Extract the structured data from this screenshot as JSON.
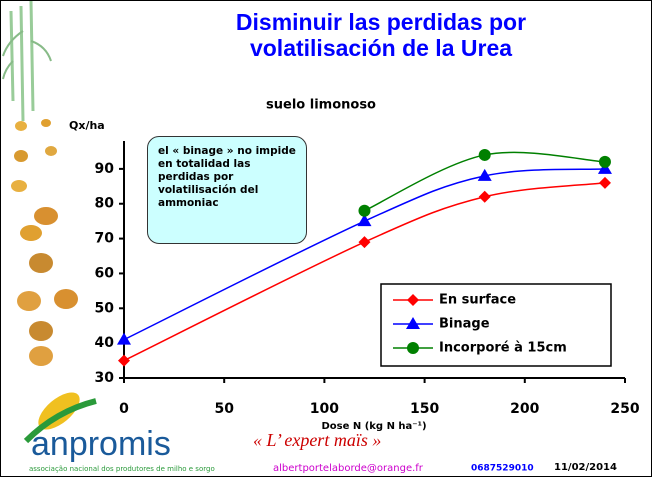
{
  "chart_data": {
    "type": "line",
    "title": "Disminuir las perdidas por volatilisación de la Urea",
    "subtitle": "suelo limonoso",
    "ylabel": "Qx/ha",
    "xlabel": "Dose N (kg N ha⁻¹)",
    "annotation": "el « binage » no impide en totalidad las perdidas por volatilisación del ammoniac",
    "xlim": [
      0,
      250
    ],
    "xticks": [
      0,
      50,
      100,
      150,
      200,
      250
    ],
    "ylim": [
      30,
      98
    ],
    "yticks": [
      30,
      40,
      50,
      60,
      70,
      80,
      90
    ],
    "legend": "lower right",
    "series": [
      {
        "name": "En surface",
        "color": "#ff0000",
        "marker": "diamond",
        "x": [
          0,
          120,
          180,
          240
        ],
        "values": [
          35,
          69,
          82,
          86
        ]
      },
      {
        "name": "Binage",
        "color": "#0000ff",
        "marker": "triangle",
        "x": [
          0,
          120,
          180,
          240
        ],
        "values": [
          41,
          75,
          88,
          90
        ]
      },
      {
        "name": "Incorporé à 15cm",
        "color": "#008000",
        "marker": "circle",
        "x": [
          120,
          180,
          240
        ],
        "values": [
          78,
          94,
          92
        ]
      }
    ]
  },
  "footer": {
    "logo": "anpromis",
    "association": "associação nacional dos produtores de milho e sorgo",
    "slogan": "« L’ expert maïs »",
    "email": "albertportelaborde@orange.fr",
    "phone": "0687529010",
    "date": "11/02/2014"
  }
}
